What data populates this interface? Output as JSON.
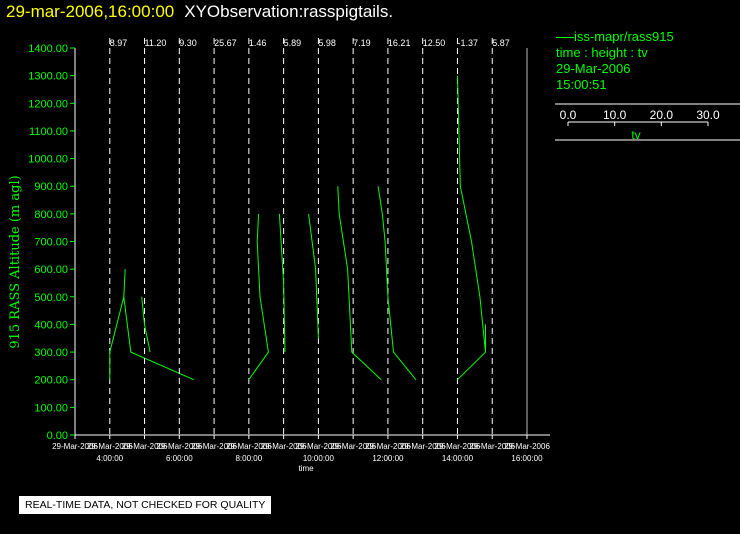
{
  "header": {
    "date": "29-mar-2006,16:00:00",
    "title": "XYObservation:rasspigtails."
  },
  "legend": {
    "series": "iss-mapr/rass915",
    "desc": "time : height : tv",
    "date": "29-Mar-2006",
    "time": "15:00:51",
    "scale_ticks": [
      "0.0",
      "10.0",
      "20.0",
      "30.0"
    ],
    "scale_label": "tv"
  },
  "notice": "REAL-TIME DATA, NOT CHECKED FOR QUALITY",
  "colors": {
    "series": "#00ff00",
    "axis": "#ffffff",
    "header_date": "#ffff00"
  },
  "chart_data": {
    "type": "line",
    "ylabel": "915 RASS Altitude (m agl)",
    "xlabel": "time",
    "ylim": [
      0,
      1400
    ],
    "yticks": [
      0,
      100,
      200,
      300,
      400,
      500,
      600,
      700,
      800,
      900,
      1000,
      1100,
      1200,
      1300,
      1400
    ],
    "ytick_labels": [
      "0.00",
      "100.00",
      "200.00",
      "300.00",
      "400.00",
      "500.00",
      "600.00",
      "700.00",
      "800.00",
      "900.00",
      "1000.00",
      "1100.00",
      "1200.00",
      "1300.00",
      "1400.00"
    ],
    "xlim": [
      3,
      16
    ],
    "xticks": [
      {
        "x": 3,
        "date": "29-Mar-2006",
        "time": ""
      },
      {
        "x": 4,
        "date": "29-Mar-2006",
        "time": "4:00:00"
      },
      {
        "x": 5,
        "date": "29-Mar-2006",
        "time": ""
      },
      {
        "x": 6,
        "date": "29-Mar-2006",
        "time": "6:00:00"
      },
      {
        "x": 7,
        "date": "29-Mar-2006",
        "time": ""
      },
      {
        "x": 8,
        "date": "29-Mar-2006",
        "time": "8:00:00"
      },
      {
        "x": 9,
        "date": "29-Mar-2006",
        "time": ""
      },
      {
        "x": 10,
        "date": "29-Mar-2006",
        "time": "10:00:00"
      },
      {
        "x": 11,
        "date": "29-Mar-2006",
        "time": ""
      },
      {
        "x": 12,
        "date": "29-Mar-2006",
        "time": "12:00:00"
      },
      {
        "x": 13,
        "date": "29-Mar-2006",
        "time": ""
      },
      {
        "x": 14,
        "date": "29-Mar-2006",
        "time": "14:00:00"
      },
      {
        "x": 15,
        "date": "29-Mar-2006",
        "time": ""
      },
      {
        "x": 16,
        "date": "29-Mar-2006",
        "time": "16:00:00"
      }
    ],
    "profiles": [
      {
        "x": 4.0,
        "label": "8.97",
        "points": [
          [
            0.0,
            200
          ],
          [
            0.0,
            300
          ],
          [
            0.5,
            500
          ],
          [
            0.55,
            600
          ],
          [
            0.5,
            500
          ],
          [
            0.75,
            300
          ],
          [
            3.0,
            200
          ]
        ]
      },
      {
        "x": 5.0,
        "label": "11.20",
        "points": [
          [
            -0.1,
            500
          ],
          [
            0.0,
            400
          ],
          [
            0.2,
            300
          ]
        ]
      },
      {
        "x": 6.0,
        "label": "9.30",
        "points": []
      },
      {
        "x": 7.0,
        "label": "25.67",
        "points": []
      },
      {
        "x": 8.0,
        "label": "1.46",
        "points": [
          [
            0.0,
            200
          ],
          [
            0.7,
            300
          ],
          [
            0.4,
            500
          ],
          [
            0.3,
            700
          ],
          [
            0.35,
            800
          ]
        ]
      },
      {
        "x": 9.0,
        "label": "5.89",
        "points": [
          [
            -0.15,
            800
          ],
          [
            0.0,
            550
          ],
          [
            0.05,
            300
          ]
        ]
      },
      {
        "x": 10.0,
        "label": "5.98",
        "points": [
          [
            -0.35,
            800
          ],
          [
            -0.1,
            600
          ],
          [
            0.0,
            350
          ]
        ]
      },
      {
        "x": 11.0,
        "label": "7.19",
        "points": [
          [
            -0.55,
            900
          ],
          [
            -0.5,
            800
          ],
          [
            -0.35,
            700
          ],
          [
            -0.2,
            600
          ],
          [
            -0.15,
            500
          ],
          [
            -0.1,
            400
          ],
          [
            -0.05,
            300
          ],
          [
            1.0,
            200
          ]
        ]
      },
      {
        "x": 12.0,
        "label": "16.21",
        "points": [
          [
            -0.35,
            900
          ],
          [
            -0.2,
            800
          ],
          [
            -0.1,
            700
          ],
          [
            -0.05,
            600
          ],
          [
            0.0,
            500
          ],
          [
            0.2,
            300
          ],
          [
            1.0,
            200
          ]
        ]
      },
      {
        "x": 13.0,
        "label": "12.50",
        "points": []
      },
      {
        "x": 14.0,
        "label": "-1.37",
        "points": [
          [
            0.0,
            1300
          ],
          [
            0.1,
            900
          ],
          [
            0.5,
            700
          ],
          [
            0.8,
            500
          ],
          [
            1.0,
            300
          ],
          [
            1.0,
            400
          ],
          [
            1.0,
            300
          ],
          [
            0.0,
            200
          ]
        ]
      },
      {
        "x": 15.0,
        "label": "5.87",
        "points": []
      }
    ]
  }
}
